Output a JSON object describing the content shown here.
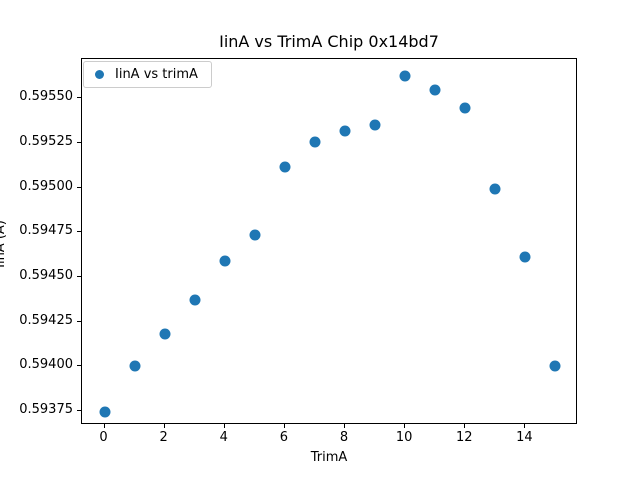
{
  "chart_data": {
    "type": "scatter",
    "title": "IinA vs TrimA Chip 0x14bd7",
    "xlabel": "TrimA",
    "ylabel": "IinA (A)",
    "legend": [
      "IinA vs trimA"
    ],
    "legend_position": "upper left",
    "grid": false,
    "marker_color": "#1f77b4",
    "x": [
      0,
      1,
      2,
      3,
      4,
      5,
      6,
      7,
      8,
      9,
      10,
      11,
      12,
      13,
      14,
      15
    ],
    "y": [
      0.593745,
      0.594003,
      0.59418,
      0.59437,
      0.594588,
      0.594737,
      0.595117,
      0.595253,
      0.595315,
      0.595352,
      0.595625,
      0.595545,
      0.595448,
      0.594995,
      0.594612,
      0.594
    ],
    "xlim": [
      -0.75,
      15.75
    ],
    "ylim": [
      0.593672,
      0.59572
    ],
    "xticks": [
      0,
      2,
      4,
      6,
      8,
      10,
      12,
      14
    ],
    "yticks": [
      0.59375,
      0.594,
      0.59425,
      0.5945,
      0.59475,
      0.595,
      0.59525,
      0.5955
    ],
    "ytick_decimals": 5
  }
}
